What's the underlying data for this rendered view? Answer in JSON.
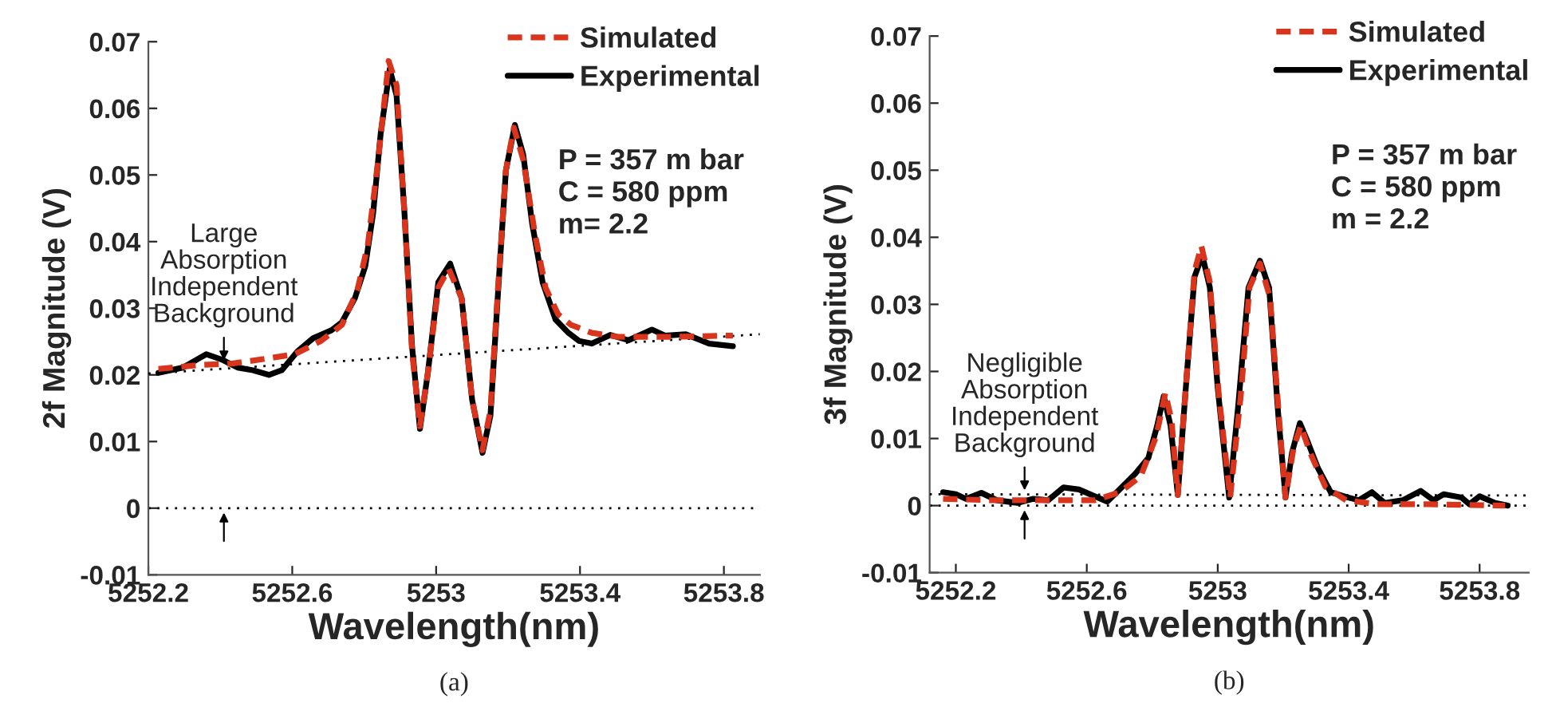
{
  "chart_data": [
    {
      "type": "line",
      "xlabel": "Wavelength(nm)",
      "ylabel": "2f Magnitude (V)",
      "xlim": [
        5252.2,
        5253.9
      ],
      "ylim": [
        -0.01,
        0.07
      ],
      "xticks": [
        5252.2,
        5252.6,
        5253,
        5253.4,
        5253.8
      ],
      "yticks": [
        -0.01,
        0,
        0.01,
        0.02,
        0.03,
        0.04,
        0.05,
        0.06,
        0.07
      ],
      "grid": false,
      "legend": "top right",
      "series": [
        {
          "name": "Simulated",
          "color": "#d9341c",
          "line_style": "dashed",
          "x": [
            5252.228,
            5252.346,
            5252.433,
            5252.535,
            5252.607,
            5252.68,
            5252.738,
            5252.781,
            5252.81,
            5252.839,
            5252.868,
            5252.89,
            5252.912,
            5252.933,
            5252.955,
            5252.977,
            5253.006,
            5253.035,
            5253.071,
            5253.1,
            5253.129,
            5253.151,
            5253.172,
            5253.194,
            5253.216,
            5253.242,
            5253.275,
            5253.304,
            5253.339,
            5253.375,
            5253.433,
            5253.506,
            5253.651,
            5253.825
          ],
          "values": [
            0.0209,
            0.0215,
            0.0217,
            0.0225,
            0.0231,
            0.0251,
            0.0275,
            0.0327,
            0.0395,
            0.0523,
            0.0671,
            0.0635,
            0.0443,
            0.0235,
            0.0123,
            0.0203,
            0.0331,
            0.0359,
            0.0315,
            0.0163,
            0.0087,
            0.0147,
            0.0331,
            0.0507,
            0.0571,
            0.0523,
            0.0411,
            0.0331,
            0.0291,
            0.0275,
            0.0263,
            0.0257,
            0.0257,
            0.0259
          ]
        },
        {
          "name": "Experimental",
          "color": "#000000",
          "line_style": "solid",
          "x": [
            5252.228,
            5252.296,
            5252.361,
            5252.404,
            5252.448,
            5252.491,
            5252.535,
            5252.571,
            5252.614,
            5252.658,
            5252.709,
            5252.738,
            5252.774,
            5252.803,
            5252.825,
            5252.846,
            5252.871,
            5252.89,
            5252.912,
            5252.933,
            5252.955,
            5252.977,
            5253.006,
            5253.039,
            5253.071,
            5253.1,
            5253.129,
            5253.151,
            5253.172,
            5253.194,
            5253.219,
            5253.242,
            5253.267,
            5253.296,
            5253.332,
            5253.368,
            5253.397,
            5253.433,
            5253.484,
            5253.535,
            5253.6,
            5253.636,
            5253.694,
            5253.759,
            5253.825
          ],
          "values": [
            0.0203,
            0.0211,
            0.0231,
            0.0223,
            0.0211,
            0.0207,
            0.02,
            0.0207,
            0.0235,
            0.0255,
            0.0267,
            0.0279,
            0.0315,
            0.0363,
            0.0443,
            0.0563,
            0.0659,
            0.0619,
            0.0443,
            0.0243,
            0.0119,
            0.0203,
            0.0339,
            0.0367,
            0.0315,
            0.0163,
            0.0083,
            0.0139,
            0.0323,
            0.0507,
            0.0575,
            0.0531,
            0.0427,
            0.0339,
            0.0283,
            0.0263,
            0.0251,
            0.0247,
            0.026,
            0.0252,
            0.0268,
            0.0259,
            0.0261,
            0.0247,
            0.0243
          ]
        },
        {
          "color": "#000000",
          "line_style": "dotted",
          "x": [
            5252.2,
            5253.9
          ],
          "values": [
            0.0202,
            0.0261
          ]
        }
      ],
      "ref_lines": [
        {
          "axis": "y",
          "value": 0,
          "color": "#000000",
          "line_style": "dotted"
        }
      ],
      "annotations": [
        "P = 357 m bar\nC = 580 ppm\nm= 2.2",
        "(a)",
        {
          "text": "Large\nAbsorption\nIndependent\nBackground",
          "x": 5252.41,
          "y": 0.0215
        }
      ]
    },
    {
      "type": "line",
      "xlabel": "Wavelength(nm)",
      "ylabel": "3f Magnitude (V)",
      "xlim": [
        5252.12,
        5253.95
      ],
      "ylim": [
        -0.01,
        0.07
      ],
      "xticks": [
        5252.2,
        5252.6,
        5253,
        5253.4,
        5253.8
      ],
      "yticks": [
        -0.01,
        0,
        0.01,
        0.02,
        0.03,
        0.04,
        0.05,
        0.06,
        0.07
      ],
      "grid": false,
      "legend": "top right",
      "series": [
        {
          "name": "Simulated",
          "color": "#d9341c",
          "line_style": "dashed",
          "x": [
            5252.161,
            5252.31,
            5252.467,
            5252.624,
            5252.702,
            5252.765,
            5252.812,
            5252.84,
            5252.859,
            5252.878,
            5252.906,
            5252.929,
            5252.95,
            5252.976,
            5253.003,
            5253.038,
            5253.071,
            5253.097,
            5253.129,
            5253.16,
            5253.188,
            5253.207,
            5253.232,
            5253.254,
            5253.282,
            5253.329,
            5253.392,
            5253.486,
            5253.643,
            5253.878
          ],
          "values": [
            0.001,
            0.0008,
            0.0008,
            0.0008,
            0.002,
            0.0044,
            0.0103,
            0.0168,
            0.0127,
            0.0016,
            0.0198,
            0.0349,
            0.0387,
            0.0333,
            0.0167,
            0.0012,
            0.0167,
            0.0325,
            0.0361,
            0.031,
            0.0127,
            0.0012,
            0.0087,
            0.0119,
            0.0079,
            0.0028,
            0.0008,
            0.0002,
            0.0002,
            0.0
          ]
        },
        {
          "name": "Experimental",
          "color": "#000000",
          "line_style": "solid",
          "x": [
            5252.161,
            5252.2,
            5252.231,
            5252.278,
            5252.325,
            5252.388,
            5252.435,
            5252.482,
            5252.529,
            5252.576,
            5252.624,
            5252.663,
            5252.702,
            5252.749,
            5252.788,
            5252.815,
            5252.835,
            5252.856,
            5252.878,
            5252.906,
            5252.929,
            5252.953,
            5252.976,
            5253.0,
            5253.035,
            5253.063,
            5253.094,
            5253.129,
            5253.157,
            5253.185,
            5253.207,
            5253.227,
            5253.251,
            5253.275,
            5253.306,
            5253.345,
            5253.392,
            5253.431,
            5253.471,
            5253.51,
            5253.565,
            5253.62,
            5253.659,
            5253.69,
            5253.745,
            5253.769,
            5253.8,
            5253.847,
            5253.886
          ],
          "values": [
            0.002,
            0.0017,
            0.001,
            0.0019,
            0.0008,
            0.0004,
            0.001,
            0.0008,
            0.0027,
            0.0024,
            0.0014,
            0.0006,
            0.0025,
            0.0048,
            0.0071,
            0.0119,
            0.0163,
            0.0119,
            0.0016,
            0.0198,
            0.0341,
            0.0373,
            0.0325,
            0.0175,
            0.0012,
            0.0151,
            0.0325,
            0.0365,
            0.0325,
            0.0135,
            0.0012,
            0.0079,
            0.0123,
            0.0095,
            0.0056,
            0.002,
            0.0013,
            0.0008,
            0.002,
            0.0004,
            0.0008,
            0.0022,
            0.0008,
            0.0017,
            0.0012,
            0.0002,
            0.0014,
            0.0004,
            0.0
          ]
        },
        {
          "color": "#000000",
          "line_style": "dotted",
          "x": [
            5252.12,
            5253.95
          ],
          "values": [
            0.0017,
            0.0015
          ]
        }
      ],
      "ref_lines": [
        {
          "axis": "y",
          "value": 0,
          "color": "#000000",
          "line_style": "dotted"
        }
      ],
      "annotations": [
        "P = 357 m bar\nC = 580 ppm\nm = 2.2",
        "(b)",
        {
          "text": "Negligible\nAbsorption\nIndependent\nBackground",
          "x": 5252.41,
          "y": 0.0016
        }
      ]
    }
  ]
}
